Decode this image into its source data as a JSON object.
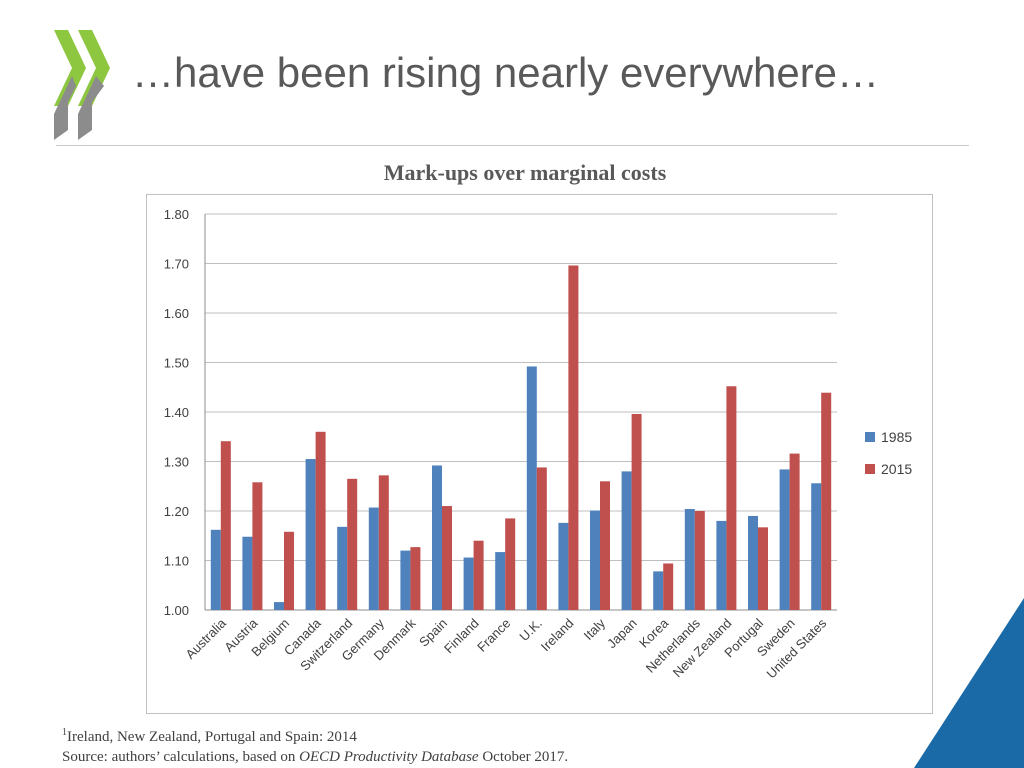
{
  "header": {
    "title": "…have been rising nearly everywhere…"
  },
  "chart_data": {
    "type": "bar",
    "title": "Mark-ups over marginal costs",
    "categories": [
      "Australia",
      "Austria",
      "Belgium",
      "Canada",
      "Switzerland",
      "Germany",
      "Denmark",
      "Spain",
      "Finland",
      "France",
      "U.K.",
      "Ireland",
      "Italy",
      "Japan",
      "Korea",
      "Netherlands",
      "New Zealand",
      "Portugal",
      "Sweden",
      "United States"
    ],
    "series": [
      {
        "name": "1985",
        "color": "#4f81bd",
        "values": [
          1.162,
          1.148,
          1.016,
          1.305,
          1.168,
          1.207,
          1.12,
          1.292,
          1.106,
          1.117,
          1.492,
          1.176,
          1.201,
          1.28,
          1.078,
          1.204,
          1.18,
          1.19,
          1.284,
          1.256
        ]
      },
      {
        "name": "2015",
        "color": "#c0504d",
        "values": [
          1.341,
          1.258,
          1.158,
          1.36,
          1.265,
          1.272,
          1.127,
          1.21,
          1.14,
          1.185,
          1.288,
          1.696,
          1.26,
          1.396,
          1.094,
          1.2,
          1.452,
          1.167,
          1.316,
          1.439
        ]
      }
    ],
    "ylim": [
      1.0,
      1.8
    ],
    "yticks": [
      "1.00",
      "1.10",
      "1.20",
      "1.30",
      "1.40",
      "1.50",
      "1.60",
      "1.70",
      "1.80"
    ],
    "grid": true,
    "legend_position": "right"
  },
  "footnote": {
    "note_marker": "1",
    "note_text": "Ireland, New Zealand, Portugal and Spain: 2014",
    "source_prefix": "Source: authors’ calculations, based on ",
    "source_italic": "OECD Productivity Database",
    "source_suffix": " October 2017."
  },
  "colors": {
    "logo_green": "#8dc63f",
    "logo_gray": "#8c8c8c",
    "corner_blue": "#1a6aa8",
    "title_gray": "#595959"
  }
}
